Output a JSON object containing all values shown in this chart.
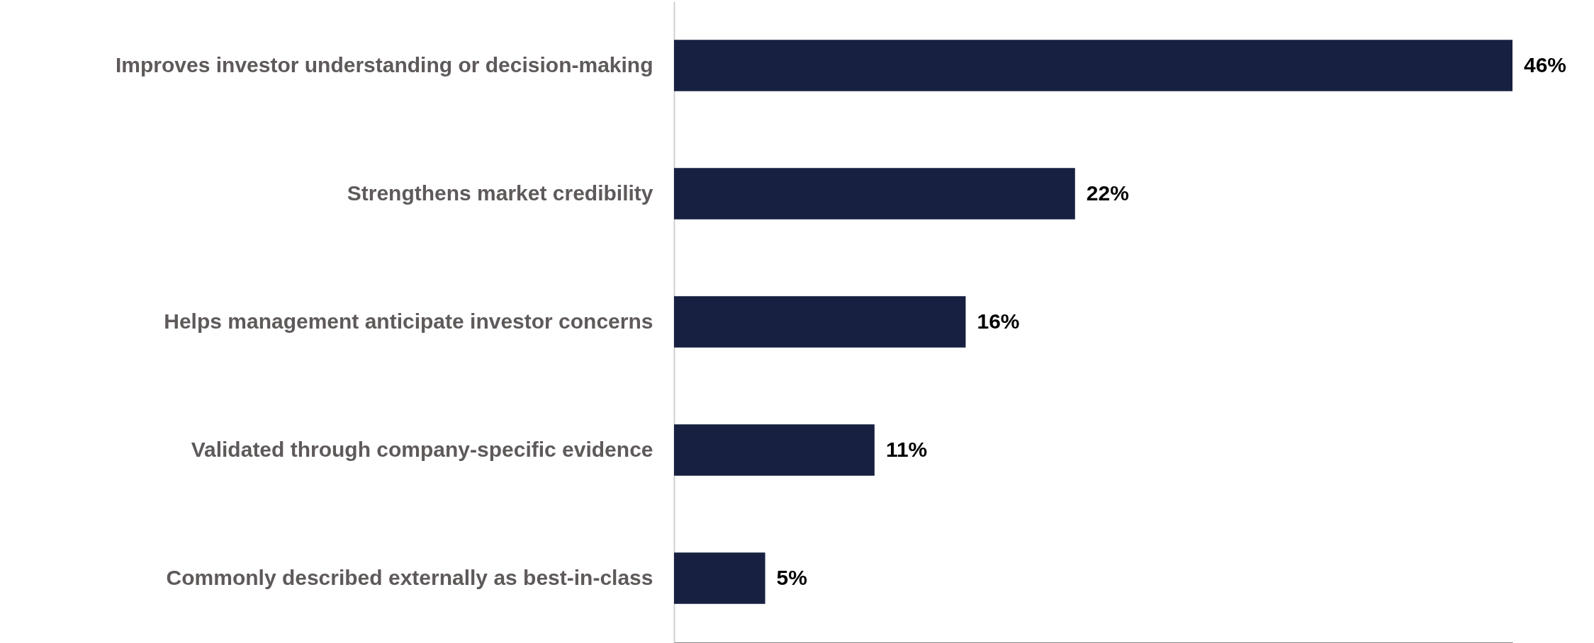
{
  "chart_data": {
    "type": "bar",
    "orientation": "horizontal",
    "relative": false,
    "categories": [
      "Improves investor understanding or decision-making",
      "Strengthens market credibility",
      "Helps management anticipate investor concerns",
      "Validated through company-specific evidence",
      "Commonly described externally as best-in-class"
    ],
    "values": [
      46,
      22,
      16,
      11,
      5
    ],
    "value_labels": [
      "46%",
      "22%",
      "16%",
      "11%",
      "5%"
    ],
    "color": "#172040"
  }
}
